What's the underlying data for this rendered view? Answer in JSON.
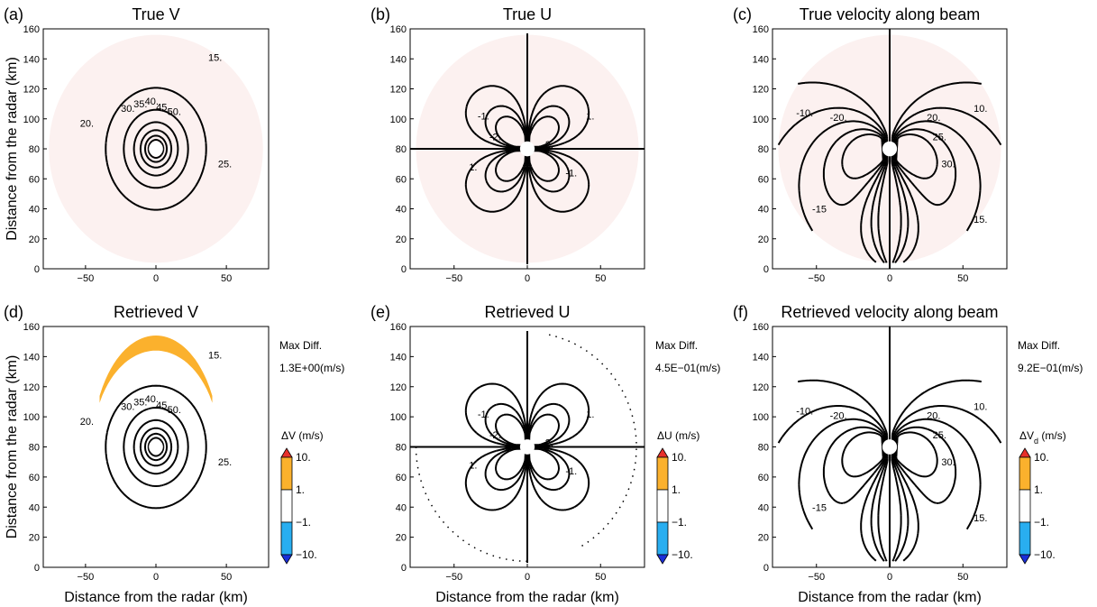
{
  "figure": {
    "x_axis_label": "Distance from the radar (km)",
    "y_axis_label": "Distance from the radar (km)"
  },
  "chart_data": [
    {
      "panel": "(a)",
      "title": "True V",
      "type": "contour",
      "field": "vortex_v",
      "xlim": [
        -80,
        80
      ],
      "ylim": [
        0,
        160
      ],
      "center": [
        0,
        80
      ],
      "x_ticks": [
        "−50",
        "0",
        "50"
      ],
      "y_ticks": [
        "0",
        "20",
        "40",
        "60",
        "80",
        "100",
        "120",
        "140",
        "160"
      ],
      "contour_labels": [
        "15.",
        "20.",
        "25.",
        "30.",
        "35.",
        "40.",
        "45.",
        "50."
      ],
      "domain_shaded": true,
      "max_diff": null
    },
    {
      "panel": "(b)",
      "title": "True U",
      "type": "contour",
      "field": "vortex_u",
      "xlim": [
        -80,
        80
      ],
      "ylim": [
        0,
        160
      ],
      "center": [
        0,
        80
      ],
      "x_ticks": [
        "−50",
        "0",
        "50"
      ],
      "y_ticks": [
        "0",
        "20",
        "40",
        "60",
        "80",
        "100",
        "120",
        "140",
        "160"
      ],
      "contour_labels": [
        "-1.",
        "-2.",
        "1.",
        "2.",
        "-1.",
        "1."
      ],
      "domain_shaded": true,
      "max_diff": null
    },
    {
      "panel": "(c)",
      "title": "True velocity along beam",
      "type": "contour",
      "field": "radial",
      "xlim": [
        -80,
        80
      ],
      "ylim": [
        0,
        160
      ],
      "center": [
        0,
        80
      ],
      "x_ticks": [
        "−50",
        "0",
        "50"
      ],
      "y_ticks": [
        "0",
        "20",
        "40",
        "60",
        "80",
        "100",
        "120",
        "140",
        "160"
      ],
      "contour_labels": [
        "-10.",
        "10.",
        "-20.",
        "20.",
        "25.",
        "-15",
        "15.",
        "30."
      ],
      "domain_shaded": true,
      "max_diff": null
    },
    {
      "panel": "(d)",
      "title": "Retrieved V",
      "type": "contour",
      "field": "vortex_v",
      "xlim": [
        -80,
        80
      ],
      "ylim": [
        0,
        160
      ],
      "center": [
        0,
        80
      ],
      "x_ticks": [
        "−50",
        "0",
        "50"
      ],
      "y_ticks": [
        "0",
        "20",
        "40",
        "60",
        "80",
        "100",
        "120",
        "140",
        "160"
      ],
      "contour_labels": [
        "15.",
        "20.",
        "25.",
        "30.",
        "35.",
        "40.",
        "45.",
        "50."
      ],
      "domain_shaded": false,
      "max_diff": {
        "label": "Max Diff.",
        "value": "1.3E+00(m/s)"
      },
      "colorbar": {
        "title": "ΔV (m/s)",
        "ticks": [
          "10.",
          "1.",
          "−1.",
          "−10."
        ],
        "colors": [
          "#e8302a",
          "#fbb12d",
          "#ffffff",
          "#29aef0",
          "#1a2fd8"
        ]
      },
      "difference_region": {
        "color": "#fbb12d",
        "note": "top arc, x from -40 to 40 km"
      }
    },
    {
      "panel": "(e)",
      "title": "Retrieved U",
      "type": "contour",
      "field": "vortex_u",
      "xlim": [
        -80,
        80
      ],
      "ylim": [
        0,
        160
      ],
      "center": [
        0,
        80
      ],
      "x_ticks": [
        "−50",
        "0",
        "50"
      ],
      "y_ticks": [
        "0",
        "20",
        "40",
        "60",
        "80",
        "100",
        "120",
        "140",
        "160"
      ],
      "contour_labels": [
        "-1.",
        "-2.",
        "1.",
        "2.",
        "-1.",
        "1."
      ],
      "domain_shaded": false,
      "max_diff": {
        "label": "Max Diff.",
        "value": "4.5E−01(m/s)"
      },
      "colorbar": {
        "title": "ΔU (m/s)",
        "ticks": [
          "10.",
          "1.",
          "−1.",
          "−10."
        ],
        "colors": [
          "#e8302a",
          "#fbb12d",
          "#ffffff",
          "#29aef0",
          "#1a2fd8"
        ]
      }
    },
    {
      "panel": "(f)",
      "title": "Retrieved velocity along beam",
      "type": "contour",
      "field": "radial",
      "xlim": [
        -80,
        80
      ],
      "ylim": [
        0,
        160
      ],
      "center": [
        0,
        80
      ],
      "x_ticks": [
        "−50",
        "0",
        "50"
      ],
      "y_ticks": [
        "0",
        "20",
        "40",
        "60",
        "80",
        "100",
        "120",
        "140",
        "160"
      ],
      "contour_labels": [
        "-10.",
        "10.",
        "-20.",
        "20.",
        "25.",
        "-15",
        "15.",
        "30."
      ],
      "domain_shaded": false,
      "max_diff": {
        "label": "Max Diff.",
        "value": "9.2E−01(m/s)"
      },
      "colorbar": {
        "title": "ΔV",
        "title_sub": "d",
        "title_unit": " (m/s)",
        "ticks": [
          "10.",
          "1.",
          "−1.",
          "−10."
        ],
        "colors": [
          "#e8302a",
          "#fbb12d",
          "#ffffff",
          "#29aef0",
          "#1a2fd8"
        ]
      }
    }
  ]
}
